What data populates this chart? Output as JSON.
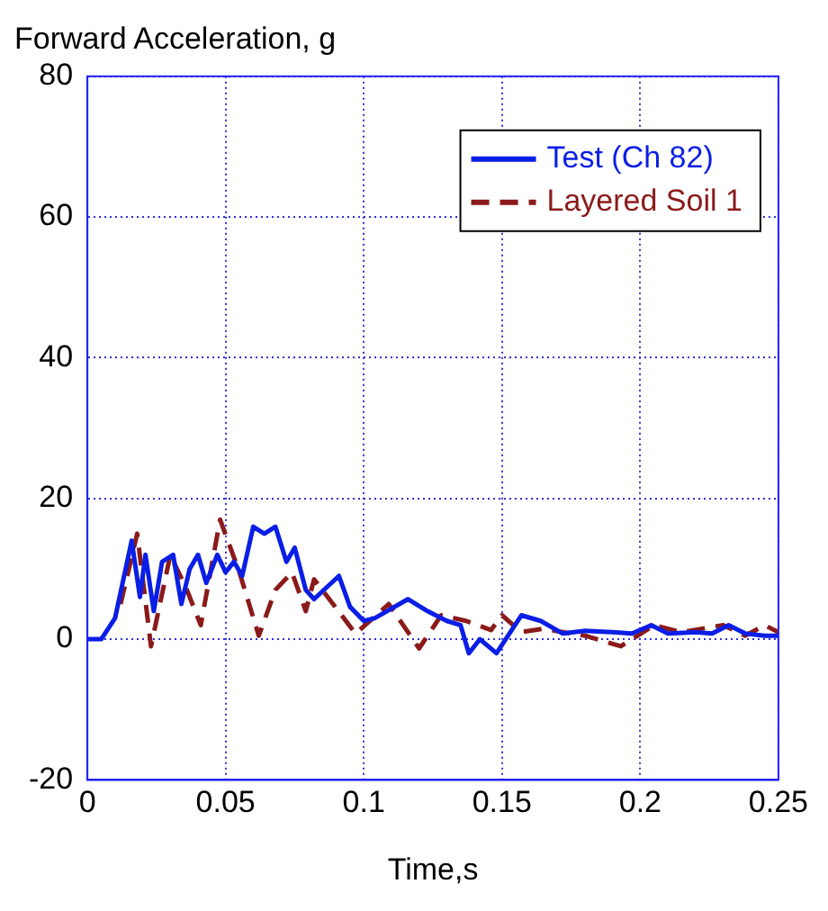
{
  "chart_data": {
    "type": "line",
    "title": "Forward Acceleration, g",
    "xlabel": "Time,s",
    "xlim": [
      0,
      0.25
    ],
    "xticks": [
      0,
      0.05,
      0.1,
      0.15,
      0.2,
      0.25
    ],
    "ylim": [
      -20,
      80
    ],
    "yticks": [
      -20,
      0,
      20,
      40,
      60,
      80
    ],
    "grid": true,
    "legend": "top right",
    "series": [
      {
        "name": "Test (Ch 82)",
        "color": "#0a1ee6",
        "line_style": "solid",
        "x": [
          0,
          0.005,
          0.01,
          0.016,
          0.019,
          0.021,
          0.024,
          0.027,
          0.031,
          0.034,
          0.037,
          0.04,
          0.043,
          0.047,
          0.05,
          0.053,
          0.056,
          0.06,
          0.064,
          0.068,
          0.072,
          0.075,
          0.079,
          0.082,
          0.091,
          0.095,
          0.1,
          0.104,
          0.116,
          0.123,
          0.13,
          0.135,
          0.138,
          0.142,
          0.148,
          0.157,
          0.164,
          0.172,
          0.18,
          0.19,
          0.197,
          0.204,
          0.21,
          0.22,
          0.226,
          0.232,
          0.238,
          0.245,
          0.25
        ],
        "values": [
          0,
          0,
          3,
          14,
          6,
          12,
          4,
          11,
          12,
          5,
          10,
          12,
          8,
          12,
          9.5,
          11,
          9,
          16,
          15,
          16,
          11,
          13,
          7,
          5.7,
          9,
          4.6,
          2.6,
          3,
          5.7,
          4,
          2.6,
          2,
          -2,
          0,
          -2,
          3.4,
          2.6,
          0.8,
          1.2,
          1,
          0.8,
          2,
          0.8,
          1,
          0.8,
          2,
          0.8,
          0.5,
          0.5
        ]
      },
      {
        "name": "Layered Soil 1",
        "color": "#8b1a1a",
        "line_style": "dashed",
        "x": [
          0.012,
          0.018,
          0.023,
          0.03,
          0.036,
          0.041,
          0.048,
          0.055,
          0.062,
          0.068,
          0.074,
          0.079,
          0.082,
          0.092,
          0.097,
          0.109,
          0.12,
          0.128,
          0.137,
          0.146,
          0.15,
          0.157,
          0.165,
          0.172,
          0.18,
          0.193,
          0.205,
          0.215,
          0.23,
          0.238,
          0.245,
          0.25
        ],
        "values": [
          5,
          15,
          -1,
          12,
          7,
          2,
          17,
          9.5,
          0.5,
          7,
          9.5,
          4,
          8.5,
          3.4,
          0.8,
          5,
          -1.3,
          3.4,
          2.6,
          1.3,
          3.4,
          1,
          1.5,
          1,
          0.5,
          -1,
          2,
          1,
          2,
          0.5,
          2,
          1
        ]
      }
    ]
  }
}
